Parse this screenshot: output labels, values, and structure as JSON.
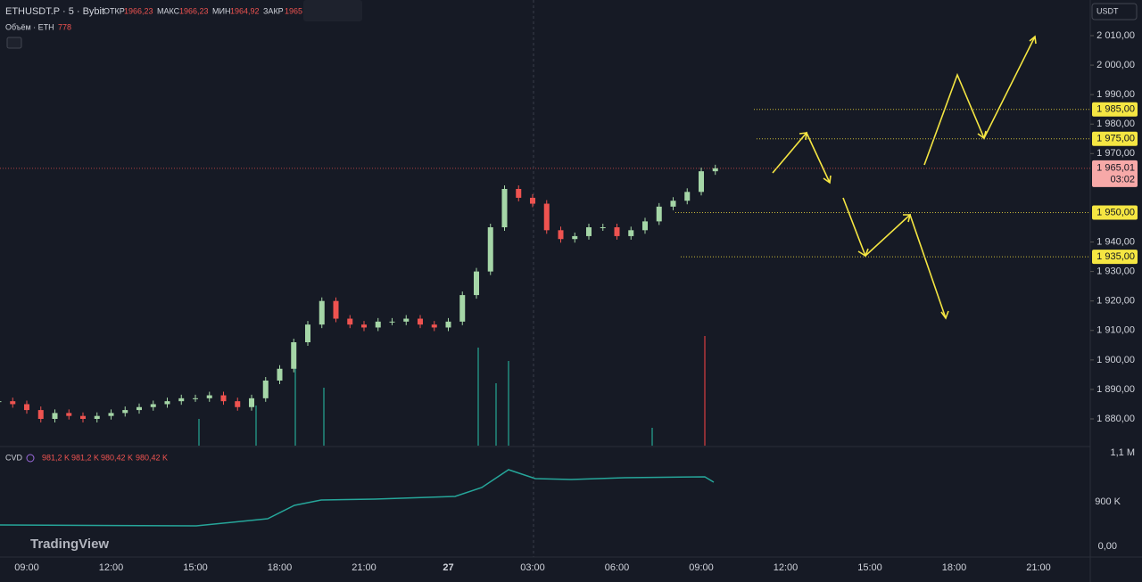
{
  "header": {
    "symbol": "ETHUSDT.P · 5 · Bybit",
    "open_label": "ОТКР",
    "open": "1966,23",
    "high_label": "МАКС",
    "high": "1966,23",
    "low_label": "МИН",
    "low": "1964,92",
    "close_label": "ЗАКР",
    "close": "1965",
    "volume_label": "Объём · ETH",
    "volume": "778",
    "cvd_label": "CVD",
    "cvd_values": [
      "981,2 K",
      "981,2 K",
      "980,42 K",
      "980,42 K"
    ]
  },
  "currency": "USDT",
  "price_axis": {
    "ticks": [
      {
        "value": 2010,
        "label": "2 010,00"
      },
      {
        "value": 2000,
        "label": "2 000,00"
      },
      {
        "value": 1990,
        "label": "1 990,00"
      },
      {
        "value": 1980,
        "label": "1 980,00"
      },
      {
        "value": 1970,
        "label": "1 970,00"
      },
      {
        "value": 1940,
        "label": "1 940,00"
      },
      {
        "value": 1930,
        "label": "1 930,00"
      },
      {
        "value": 1920,
        "label": "1 920,00"
      },
      {
        "value": 1910,
        "label": "1 910,00"
      },
      {
        "value": 1900,
        "label": "1 900,00"
      },
      {
        "value": 1890,
        "label": "1 890,00"
      },
      {
        "value": 1880,
        "label": "1 880,00"
      }
    ],
    "levels": [
      {
        "value": 1985,
        "label": "1 985,00"
      },
      {
        "value": 1975,
        "label": "1 975,00"
      },
      {
        "value": 1950,
        "label": "1 950,00"
      },
      {
        "value": 1935,
        "label": "1 935,00"
      }
    ],
    "last_price": {
      "value": 1965.01,
      "label": "1 965,01"
    },
    "countdown": "03:02"
  },
  "cvd_axis": [
    "1,1 M",
    "900 K",
    "0,00"
  ],
  "time_axis": [
    "09:00",
    "12:00",
    "15:00",
    "18:00",
    "21:00",
    "27",
    "03:00",
    "06:00",
    "09:00",
    "12:00",
    "15:00",
    "18:00",
    "21:00"
  ],
  "price": {
    "x": [
      -1,
      -0.5,
      0,
      0.5,
      1,
      1.5,
      2,
      2.5,
      3,
      3.5,
      4,
      4.5,
      5,
      5.5,
      6,
      6.5,
      7,
      7.5,
      8,
      8.5,
      9,
      9.5,
      10,
      10.5,
      11,
      11.5,
      12,
      12.5,
      13,
      13.5,
      14,
      14.5,
      15,
      15.5,
      16,
      16.5,
      17,
      17.5,
      18,
      18.5,
      19,
      19.5,
      20,
      20.5,
      21,
      21.5,
      22,
      22.5,
      23,
      23.5,
      24,
      24.5
    ],
    "close": [
      1886,
      1885,
      1883,
      1880,
      1882,
      1881,
      1880,
      1881,
      1882,
      1883,
      1884,
      1885,
      1886,
      1887,
      1887,
      1888,
      1886,
      1884,
      1887,
      1893,
      1897,
      1906,
      1912,
      1920,
      1914,
      1912,
      1911,
      1913,
      1913,
      1914,
      1912,
      1911,
      1913,
      1922,
      1930,
      1945,
      1958,
      1955,
      1953,
      1944,
      1941,
      1942,
      1945,
      1945,
      1942,
      1944,
      1947,
      1952,
      1954,
      1957,
      1964,
      1965
    ]
  },
  "branding": "TradingView"
}
